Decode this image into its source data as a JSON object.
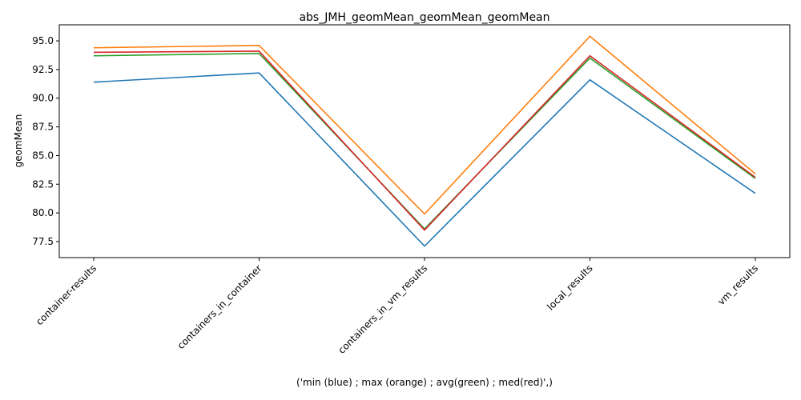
{
  "chart_data": {
    "type": "line",
    "title": "abs_JMH_geomMean_geomMean_geomMean",
    "xlabel": "('min (blue) ; max (orange) ; avg(green) ; med(red)',)",
    "ylabel": "geomMean",
    "categories": [
      "container-results",
      "containers_in_container",
      "containers_in_vm_results",
      "local_results",
      "vm_results"
    ],
    "ylim": [
      76.1,
      96.4
    ],
    "yticks": [
      77.5,
      80.0,
      82.5,
      85.0,
      87.5,
      90.0,
      92.5,
      95.0
    ],
    "ytick_labels": [
      "77.5",
      "80.0",
      "82.5",
      "85.0",
      "87.5",
      "90.0",
      "92.5",
      "95.0"
    ],
    "grid": false,
    "series": [
      {
        "color": "#1f77b4",
        "values": [
          91.4,
          92.2,
          77.1,
          91.6,
          81.7
        ]
      },
      {
        "color": "#ff7f0e",
        "values": [
          94.4,
          94.6,
          79.9,
          95.4,
          83.4
        ]
      },
      {
        "color": "#2ca02c",
        "values": [
          93.7,
          93.9,
          78.6,
          93.5,
          83.0
        ]
      },
      {
        "color": "#d62728",
        "values": [
          94.0,
          94.1,
          78.5,
          93.7,
          83.1
        ]
      }
    ]
  }
}
